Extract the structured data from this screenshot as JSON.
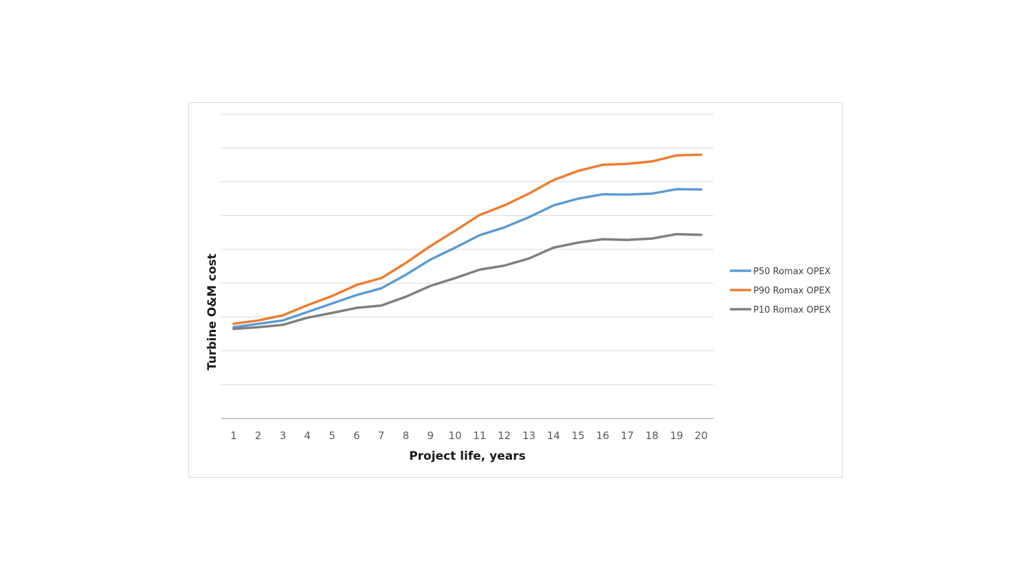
{
  "chart_data": {
    "type": "line",
    "title": "",
    "xlabel": "Project life, years",
    "ylabel": "Turbine O&M cost",
    "categories": [
      "1",
      "2",
      "3",
      "4",
      "5",
      "6",
      "7",
      "8",
      "9",
      "10",
      "11",
      "12",
      "13",
      "14",
      "15",
      "16",
      "17",
      "18",
      "19",
      "20"
    ],
    "ylim": [
      0,
      9
    ],
    "gridlines": 9,
    "show_y_tick_labels": false,
    "grid": true,
    "legend_position": "right",
    "series": [
      {
        "name": "P50 Romax OPEX",
        "color": "#5b9bd5",
        "values": [
          2.7,
          2.8,
          2.9,
          3.15,
          3.4,
          3.65,
          3.85,
          4.25,
          4.7,
          5.05,
          5.42,
          5.65,
          5.95,
          6.3,
          6.5,
          6.63,
          6.62,
          6.65,
          6.78,
          6.77
        ]
      },
      {
        "name": "P90 Romax OPEX",
        "color": "#ed7d31",
        "values": [
          2.8,
          2.9,
          3.05,
          3.35,
          3.62,
          3.95,
          4.15,
          4.6,
          5.1,
          5.55,
          6.02,
          6.3,
          6.65,
          7.05,
          7.32,
          7.5,
          7.53,
          7.6,
          7.78,
          7.8
        ]
      },
      {
        "name": "P10 Romax OPEX",
        "color": "#7f7f7f",
        "values": [
          2.65,
          2.7,
          2.77,
          2.98,
          3.12,
          3.27,
          3.34,
          3.6,
          3.92,
          4.15,
          4.4,
          4.52,
          4.73,
          5.05,
          5.2,
          5.3,
          5.28,
          5.32,
          5.45,
          5.43
        ]
      }
    ]
  }
}
